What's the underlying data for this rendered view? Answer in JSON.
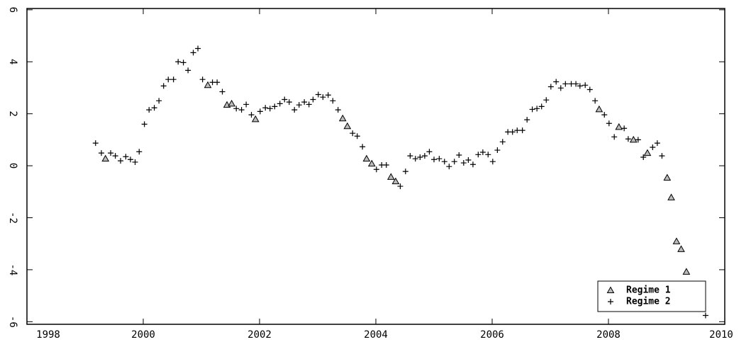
{
  "chart_data": {
    "type": "scatter",
    "xlim": [
      1998,
      2010
    ],
    "ylim": [
      -6.1,
      6.05
    ],
    "xticks": [
      1998,
      2000,
      2002,
      2004,
      2006,
      2008,
      2010
    ],
    "yticks": [
      -6,
      -4,
      -2,
      0,
      2,
      4,
      6
    ],
    "legend": "bottom-right",
    "series": [
      {
        "name": "Regime 1",
        "marker": "triangle",
        "color": "#000000",
        "x": [
          1999.35,
          2001.11,
          2001.44,
          2001.52,
          2001.93,
          2003.43,
          2003.51,
          2003.84,
          2003.93,
          2004.26,
          2004.34,
          2007.84,
          2008.18,
          2008.43,
          2008.67,
          2009.01,
          2009.08,
          2009.17,
          2009.25,
          2009.34
        ],
        "values": [
          0.27,
          3.1,
          2.34,
          2.39,
          1.79,
          1.82,
          1.52,
          0.27,
          0.08,
          -0.43,
          -0.6,
          2.17,
          1.49,
          1.0,
          0.49,
          -0.46,
          -1.22,
          -2.91,
          -3.21,
          -4.08
        ]
      },
      {
        "name": "Regime 2",
        "marker": "plus",
        "color": "#000000",
        "x": [
          1999.18,
          1999.28,
          1999.44,
          1999.52,
          1999.61,
          1999.7,
          1999.78,
          1999.86,
          1999.93,
          2000.02,
          2000.1,
          2000.19,
          2000.27,
          2000.35,
          2000.43,
          2000.52,
          2000.6,
          2000.69,
          2000.77,
          2000.86,
          2000.94,
          2001.02,
          2001.19,
          2001.27,
          2001.36,
          2001.6,
          2001.69,
          2001.77,
          2001.86,
          2002.01,
          2002.1,
          2002.18,
          2002.26,
          2002.35,
          2002.43,
          2002.51,
          2002.6,
          2002.68,
          2002.77,
          2002.85,
          2002.92,
          2003.01,
          2003.09,
          2003.18,
          2003.26,
          2003.35,
          2003.6,
          2003.68,
          2003.77,
          2004.01,
          2004.1,
          2004.18,
          2004.42,
          2004.51,
          2004.59,
          2004.68,
          2004.76,
          2004.84,
          2004.92,
          2005.0,
          2005.09,
          2005.18,
          2005.26,
          2005.35,
          2005.43,
          2005.51,
          2005.59,
          2005.67,
          2005.76,
          2005.84,
          2005.93,
          2006.01,
          2006.09,
          2006.18,
          2006.27,
          2006.35,
          2006.43,
          2006.52,
          2006.6,
          2006.69,
          2006.77,
          2006.85,
          2006.93,
          2007.01,
          2007.1,
          2007.18,
          2007.26,
          2007.36,
          2007.44,
          2007.51,
          2007.6,
          2007.68,
          2007.77,
          2007.93,
          2008.01,
          2008.1,
          2008.27,
          2008.34,
          2008.51,
          2008.6,
          2008.76,
          2008.84,
          2008.92,
          2009.67
        ],
        "values": [
          0.87,
          0.49,
          0.49,
          0.38,
          0.19,
          0.35,
          0.24,
          0.14,
          0.54,
          1.6,
          2.15,
          2.23,
          2.5,
          3.07,
          3.32,
          3.32,
          4.0,
          3.97,
          3.67,
          4.35,
          4.51,
          3.32,
          3.21,
          3.21,
          2.85,
          2.2,
          2.15,
          2.36,
          1.96,
          2.09,
          2.23,
          2.2,
          2.28,
          2.39,
          2.55,
          2.45,
          2.15,
          2.34,
          2.45,
          2.36,
          2.55,
          2.74,
          2.64,
          2.72,
          2.5,
          2.15,
          1.25,
          1.14,
          0.73,
          -0.14,
          0.03,
          0.03,
          -0.79,
          -0.22,
          0.38,
          0.27,
          0.33,
          0.38,
          0.54,
          0.24,
          0.27,
          0.16,
          -0.03,
          0.16,
          0.41,
          0.11,
          0.22,
          0.05,
          0.43,
          0.52,
          0.43,
          0.16,
          0.6,
          0.92,
          1.3,
          1.3,
          1.36,
          1.36,
          1.77,
          2.17,
          2.2,
          2.28,
          2.53,
          3.04,
          3.23,
          2.99,
          3.15,
          3.15,
          3.15,
          3.07,
          3.1,
          2.93,
          2.5,
          1.96,
          1.63,
          1.11,
          1.44,
          1.03,
          1.0,
          0.33,
          0.71,
          0.87,
          0.38,
          -5.76
        ]
      }
    ]
  }
}
